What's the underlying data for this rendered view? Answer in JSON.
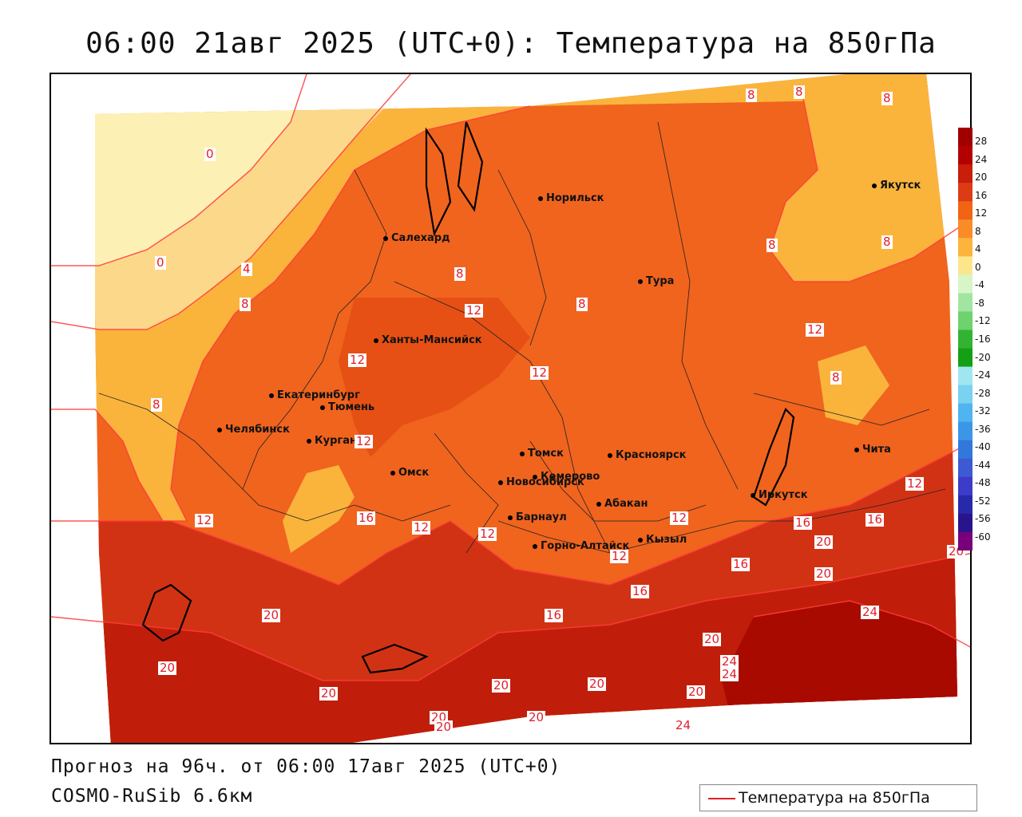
{
  "title": "06:00 21авг 2025 (UTC+0): Температура на 850гПа",
  "footer": {
    "forecast": "Прогноз на 96ч. от 06:00 17авг 2025 (UTC+0)",
    "model": "COSMO-RuSib 6.6км"
  },
  "legend": {
    "label": "Температура на 850гПа",
    "line_color": "#e02020"
  },
  "colorbar": {
    "ticks": [
      "28",
      "24",
      "20",
      "16",
      "12",
      "8",
      "4",
      "0",
      "-4",
      "-8",
      "-12",
      "-16",
      "-20",
      "-24",
      "-28",
      "-32",
      "-36",
      "-40",
      "-44",
      "-48",
      "-52",
      "-56",
      "-60"
    ],
    "colors": [
      "#a00000",
      "#b40000",
      "#c81e0a",
      "#dc3c14",
      "#f06414",
      "#fa8c28",
      "#fcb43c",
      "#fce68c",
      "#d8f5c8",
      "#a0e6a0",
      "#6ed26e",
      "#32b432",
      "#14a014",
      "#a0e6f0",
      "#78d2f0",
      "#50b4f0",
      "#3c96e6",
      "#3278dc",
      "#3c5ad2",
      "#3c3cc8",
      "#2828aa",
      "#28148c",
      "#780078"
    ]
  },
  "cities": [
    {
      "name": "Норильск"
    },
    {
      "name": "Якутск"
    },
    {
      "name": "Салехард"
    },
    {
      "name": "Тура"
    },
    {
      "name": "Ханты-Мансийск"
    },
    {
      "name": "Екатеринбург"
    },
    {
      "name": "Тюмень"
    },
    {
      "name": "Челябинск"
    },
    {
      "name": "Курган"
    },
    {
      "name": "Омск"
    },
    {
      "name": "Новосибирск"
    },
    {
      "name": "Томск"
    },
    {
      "name": "Кемерово"
    },
    {
      "name": "Красноярск"
    },
    {
      "name": "Барнаул"
    },
    {
      "name": "Абакан"
    },
    {
      "name": "Горно-Алтайск"
    },
    {
      "name": "Кызыл"
    },
    {
      "name": "Иркутск"
    },
    {
      "name": "Чита"
    }
  ],
  "contour_labels": [
    "8",
    "8",
    "8",
    "0",
    "4",
    "0",
    "8",
    "8",
    "8",
    "8",
    "12",
    "12",
    "12",
    "12",
    "12",
    "8",
    "8",
    "8",
    "12",
    "12",
    "16",
    "12",
    "12",
    "16",
    "12",
    "16",
    "20",
    "12",
    "16",
    "16",
    "20",
    "24",
    "20",
    "20",
    "24",
    "24",
    "20",
    "20",
    "20",
    "20",
    "20",
    "20",
    "20",
    "20",
    "24",
    "16",
    "20"
  ]
}
